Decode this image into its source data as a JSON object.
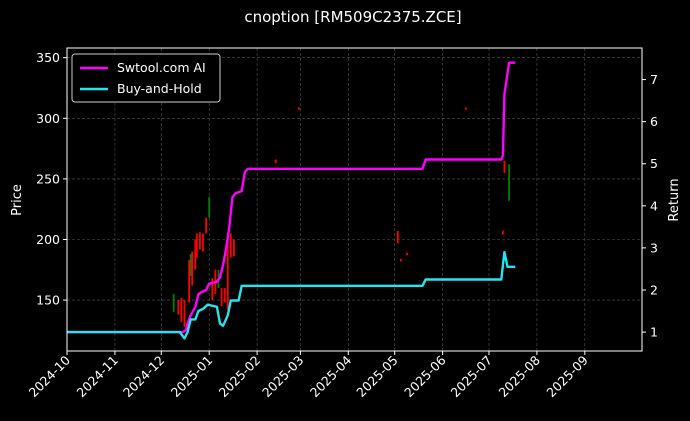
{
  "chart_data": {
    "type": "line",
    "title": "cnoption [RM509C2375.ZCE]",
    "ylabel": "Price",
    "y2label": "Return",
    "ylim": [
      108,
      358
    ],
    "y2lim": [
      0.55,
      7.75
    ],
    "xlim": [
      "2024-10-01",
      "2025-10-08"
    ],
    "x_ticks": [
      "2024-10",
      "2024-11",
      "2024-12",
      "2025-01",
      "2025-02",
      "2025-03",
      "2025-04",
      "2025-05",
      "2025-06",
      "2025-07",
      "2025-08",
      "2025-09"
    ],
    "y_ticks": [
      150,
      200,
      250,
      300,
      350
    ],
    "y2_ticks": [
      1,
      2,
      3,
      4,
      5,
      6,
      7
    ],
    "grid": true,
    "legend_position": "top-left",
    "series": [
      {
        "name": "Swtool.com AI",
        "axis": "right",
        "color": "#ff00ff",
        "points": [
          [
            "2024-10-01",
            1.0
          ],
          [
            "2024-12-10",
            1.0
          ],
          [
            "2024-12-15",
            1.0
          ],
          [
            "2024-12-17",
            1.05
          ],
          [
            "2024-12-18",
            1.2
          ],
          [
            "2024-12-20",
            1.4
          ],
          [
            "2024-12-23",
            1.6
          ],
          [
            "2024-12-25",
            1.9
          ],
          [
            "2024-12-27",
            1.95
          ],
          [
            "2024-12-30",
            2.0
          ],
          [
            "2025-01-01",
            2.15
          ],
          [
            "2025-01-06",
            2.2
          ],
          [
            "2025-01-08",
            2.3
          ],
          [
            "2025-01-10",
            2.6
          ],
          [
            "2025-01-12",
            3.0
          ],
          [
            "2025-01-14",
            3.5
          ],
          [
            "2025-01-16",
            4.2
          ],
          [
            "2025-01-18",
            4.3
          ],
          [
            "2025-01-22",
            4.35
          ],
          [
            "2025-01-24",
            4.8
          ],
          [
            "2025-01-26",
            4.88
          ],
          [
            "2025-05-19",
            4.88
          ],
          [
            "2025-05-21",
            5.1
          ],
          [
            "2025-07-09",
            5.1
          ],
          [
            "2025-07-10",
            5.2
          ],
          [
            "2025-07-11",
            6.65
          ],
          [
            "2025-07-14",
            7.4
          ],
          [
            "2025-07-18",
            7.4
          ]
        ]
      },
      {
        "name": "Buy-and-Hold",
        "axis": "right",
        "color": "#22e5ee",
        "points": [
          [
            "2024-10-01",
            1.0
          ],
          [
            "2024-12-10",
            1.0
          ],
          [
            "2024-12-13",
            1.0
          ],
          [
            "2024-12-16",
            0.85
          ],
          [
            "2024-12-18",
            1.0
          ],
          [
            "2024-12-20",
            1.3
          ],
          [
            "2024-12-23",
            1.3
          ],
          [
            "2024-12-25",
            1.5
          ],
          [
            "2024-12-28",
            1.55
          ],
          [
            "2024-12-31",
            1.65
          ],
          [
            "2025-01-06",
            1.6
          ],
          [
            "2025-01-08",
            1.2
          ],
          [
            "2025-01-10",
            1.15
          ],
          [
            "2025-01-13",
            1.4
          ],
          [
            "2025-01-15",
            1.75
          ],
          [
            "2025-01-18",
            1.75
          ],
          [
            "2025-01-20",
            1.75
          ],
          [
            "2025-01-22",
            2.1
          ],
          [
            "2025-05-19",
            2.1
          ],
          [
            "2025-05-21",
            2.25
          ],
          [
            "2025-07-09",
            2.25
          ],
          [
            "2025-07-11",
            2.9
          ],
          [
            "2025-07-13",
            2.55
          ],
          [
            "2025-07-18",
            2.55
          ]
        ]
      }
    ],
    "candles": [
      {
        "x": "2024-12-09",
        "low": 140,
        "high": 155,
        "color": "#008000"
      },
      {
        "x": "2024-12-12",
        "low": 138,
        "high": 150,
        "color": "#ff0000"
      },
      {
        "x": "2024-12-14",
        "low": 132,
        "high": 152,
        "color": "#ff0000"
      },
      {
        "x": "2024-12-16",
        "low": 128,
        "high": 150,
        "color": "#ff0000"
      },
      {
        "x": "2024-12-19",
        "low": 148,
        "high": 183,
        "color": "#ff0000"
      },
      {
        "x": "2024-12-20",
        "low": 170,
        "high": 188,
        "color": "#008000"
      },
      {
        "x": "2024-12-21",
        "low": 162,
        "high": 190,
        "color": "#ff0000"
      },
      {
        "x": "2024-12-23",
        "low": 175,
        "high": 200,
        "color": "#ff0000"
      },
      {
        "x": "2024-12-24",
        "low": 185,
        "high": 205,
        "color": "#ff0000"
      },
      {
        "x": "2024-12-26",
        "low": 192,
        "high": 206,
        "color": "#ff0000"
      },
      {
        "x": "2024-12-28",
        "low": 190,
        "high": 205,
        "color": "#ff0000"
      },
      {
        "x": "2024-12-30",
        "low": 205,
        "high": 218,
        "color": "#ff0000"
      },
      {
        "x": "2025-01-01",
        "low": 218,
        "high": 235,
        "color": "#008000"
      },
      {
        "x": "2025-01-03",
        "low": 150,
        "high": 168,
        "color": "#ff0000"
      },
      {
        "x": "2025-01-05",
        "low": 155,
        "high": 175,
        "color": "#ff0000"
      },
      {
        "x": "2025-01-07",
        "low": 160,
        "high": 175,
        "color": "#008000"
      },
      {
        "x": "2025-01-09",
        "low": 145,
        "high": 160,
        "color": "#ff0000"
      },
      {
        "x": "2025-01-11",
        "low": 148,
        "high": 160,
        "color": "#ff0000"
      },
      {
        "x": "2025-01-13",
        "low": 142,
        "high": 200,
        "color": "#ff0000"
      },
      {
        "x": "2025-01-15",
        "low": 185,
        "high": 205,
        "color": "#ff0000"
      },
      {
        "x": "2025-01-17",
        "low": 186,
        "high": 200,
        "color": "#ff0000"
      },
      {
        "x": "2025-02-13",
        "low": 263,
        "high": 266,
        "color": "#ff0000"
      },
      {
        "x": "2025-02-28",
        "low": 307,
        "high": 309,
        "color": "#ff0000"
      },
      {
        "x": "2025-05-03",
        "low": 197,
        "high": 207,
        "color": "#ff0000"
      },
      {
        "x": "2025-05-05",
        "low": 182,
        "high": 184,
        "color": "#ff0000"
      },
      {
        "x": "2025-05-09",
        "low": 187,
        "high": 189,
        "color": "#ff0000"
      },
      {
        "x": "2025-06-16",
        "low": 307,
        "high": 309,
        "color": "#ff0000"
      },
      {
        "x": "2025-07-10",
        "low": 204,
        "high": 207,
        "color": "#ff0000"
      },
      {
        "x": "2025-07-11",
        "low": 255,
        "high": 265,
        "color": "#ff0000"
      },
      {
        "x": "2025-07-14",
        "low": 232,
        "high": 262,
        "color": "#008000"
      }
    ]
  }
}
